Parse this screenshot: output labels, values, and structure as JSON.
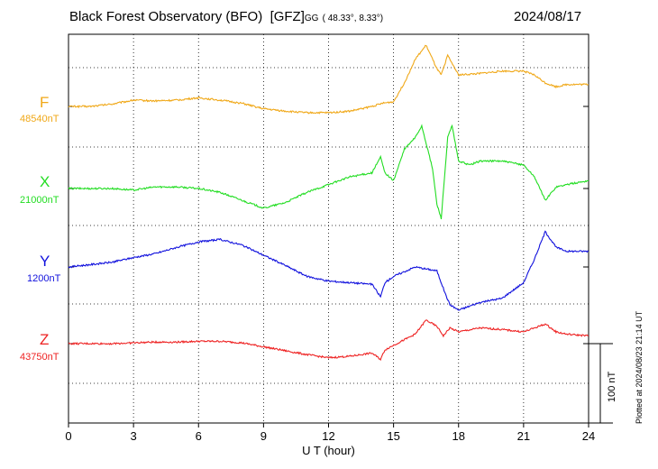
{
  "header": {
    "observatory": "Black Forest Observatory (BFO)",
    "agency": "[GFZ]",
    "coord_system": "GG",
    "coords": "( 48.33°,   8.33°)",
    "date": "2024/08/17"
  },
  "plotted_note": "Plotted at 2024/08/23 21:14 UT",
  "chart_data": {
    "type": "line",
    "xlabel": "U T (hour)",
    "xlim": [
      0,
      24
    ],
    "xticks": [
      "0",
      "3",
      "6",
      "9",
      "12",
      "15",
      "18",
      "21",
      "24"
    ],
    "scale_bar": "100 nT",
    "series": [
      {
        "name": "F",
        "baseline": "48540nT",
        "color": "#f0a818",
        "t": [
          0,
          1,
          2,
          3,
          4,
          5,
          6,
          7,
          8,
          9,
          10,
          11,
          12,
          13,
          14,
          14.5,
          15,
          15.5,
          16,
          16.5,
          17,
          17.2,
          17.5,
          18,
          19,
          20,
          21,
          21.5,
          22,
          22.5,
          23,
          24
        ],
        "v": [
          0,
          0,
          3,
          8,
          7,
          8,
          11,
          8,
          4,
          -3,
          -6,
          -8,
          -8,
          -6,
          0,
          4,
          6,
          30,
          60,
          78,
          48,
          40,
          65,
          40,
          42,
          45,
          45,
          40,
          30,
          25,
          28,
          28
        ]
      },
      {
        "name": "X",
        "baseline": "21000nT",
        "color": "#22dd22",
        "t": [
          0,
          1,
          2,
          3,
          4,
          5,
          6,
          7,
          8,
          9,
          10,
          11,
          12,
          13,
          14,
          14.4,
          14.6,
          15,
          15.5,
          16,
          16.3,
          16.8,
          17,
          17.2,
          17.5,
          17.7,
          18,
          18.5,
          19,
          20,
          21,
          21.5,
          22,
          22.5,
          23,
          24
        ],
        "v": [
          0,
          0,
          0,
          -2,
          2,
          2,
          0,
          -5,
          -15,
          -25,
          -18,
          -5,
          5,
          15,
          20,
          40,
          20,
          10,
          50,
          65,
          80,
          25,
          -20,
          -38,
          65,
          80,
          35,
          30,
          35,
          35,
          30,
          15,
          -15,
          2,
          5,
          10
        ]
      },
      {
        "name": "Y",
        "baseline": "1200nT",
        "color": "#1111dd",
        "t": [
          0,
          1,
          2,
          3,
          4,
          5,
          6,
          7,
          8,
          9,
          10,
          11,
          12,
          13,
          14,
          14.4,
          14.6,
          15,
          16,
          17,
          17.4,
          17.6,
          18,
          19,
          20,
          21,
          21.5,
          22,
          22.5,
          23,
          24
        ],
        "v": [
          0,
          3,
          6,
          12,
          17,
          25,
          32,
          35,
          28,
          15,
          2,
          -12,
          -18,
          -20,
          -22,
          -38,
          -20,
          -12,
          0,
          -5,
          -35,
          -48,
          -55,
          -45,
          -40,
          -20,
          10,
          45,
          25,
          20,
          20
        ]
      },
      {
        "name": "Z",
        "baseline": "43750nT",
        "color": "#ee2222",
        "t": [
          0,
          1,
          2,
          3,
          4,
          5,
          6,
          7,
          8,
          9,
          10,
          11,
          12,
          13,
          14,
          14.4,
          14.6,
          15,
          16,
          16.5,
          17,
          17.3,
          17.6,
          18,
          19,
          20,
          21,
          21.5,
          22,
          22.5,
          23,
          24
        ],
        "v": [
          0,
          0,
          0,
          1,
          2,
          2,
          3,
          3,
          1,
          -4,
          -9,
          -14,
          -18,
          -16,
          -12,
          -20,
          -8,
          -2,
          12,
          30,
          22,
          10,
          20,
          15,
          20,
          18,
          15,
          20,
          25,
          15,
          12,
          10
        ]
      }
    ]
  }
}
